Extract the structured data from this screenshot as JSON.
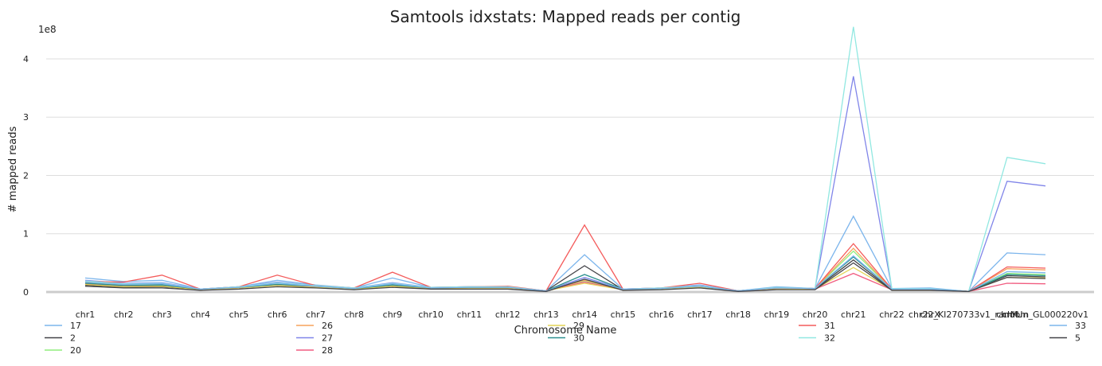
{
  "chart_data": {
    "type": "line",
    "title": "Samtools idxstats: Mapped reads per contig",
    "xlabel": "Chromosome Name",
    "ylabel": "# mapped reads",
    "y_multiplier_label": "1e8",
    "ylim": [
      0,
      4.6
    ],
    "yticks": [
      0,
      1,
      2,
      3,
      4
    ],
    "grid": true,
    "legend_position": "bottom",
    "categories": [
      "chr1",
      "chr2",
      "chr3",
      "chr4",
      "chr5",
      "chr6",
      "chr7",
      "chr8",
      "chr9",
      "chr10",
      "chr11",
      "chr12",
      "chr13",
      "chr14",
      "chr15",
      "chr16",
      "chr17",
      "chr18",
      "chr19",
      "chr20",
      "chr21",
      "chr22",
      "chrX",
      "chr22_KI270733v1_random",
      "chrM",
      "chrUn_GL000220v1"
    ],
    "series": [
      {
        "name": "17",
        "color": "#7cb5ec",
        "values": [
          0.24,
          0.18,
          0.2,
          0.05,
          0.09,
          0.2,
          0.12,
          0.07,
          0.24,
          0.08,
          0.09,
          0.09,
          0.02,
          0.64,
          0.05,
          0.07,
          0.12,
          0.02,
          0.09,
          0.06,
          1.3,
          0.06,
          0.07,
          0.01,
          0.67,
          0.64
        ]
      },
      {
        "name": "2",
        "color": "#434348",
        "values": [
          0.12,
          0.08,
          0.09,
          0.04,
          0.07,
          0.12,
          0.09,
          0.05,
          0.1,
          0.06,
          0.07,
          0.07,
          0.02,
          0.45,
          0.04,
          0.05,
          0.09,
          0.02,
          0.05,
          0.05,
          0.55,
          0.04,
          0.04,
          0.01,
          0.28,
          0.26
        ]
      },
      {
        "name": "20",
        "color": "#90ed7d",
        "values": [
          0.16,
          0.12,
          0.13,
          0.05,
          0.08,
          0.14,
          0.1,
          0.06,
          0.13,
          0.07,
          0.08,
          0.08,
          0.02,
          0.18,
          0.05,
          0.06,
          0.1,
          0.02,
          0.07,
          0.06,
          0.7,
          0.05,
          0.05,
          0.01,
          0.32,
          0.3
        ]
      },
      {
        "name": "26",
        "color": "#f7a35c",
        "values": [
          0.15,
          0.11,
          0.12,
          0.05,
          0.08,
          0.13,
          0.1,
          0.06,
          0.12,
          0.07,
          0.08,
          0.08,
          0.02,
          0.2,
          0.05,
          0.06,
          0.11,
          0.02,
          0.07,
          0.06,
          0.75,
          0.05,
          0.05,
          0.01,
          0.4,
          0.38
        ]
      },
      {
        "name": "27",
        "color": "#8085e9",
        "values": [
          0.2,
          0.15,
          0.16,
          0.05,
          0.09,
          0.17,
          0.11,
          0.07,
          0.16,
          0.08,
          0.09,
          0.09,
          0.02,
          0.25,
          0.05,
          0.07,
          0.12,
          0.02,
          0.08,
          0.06,
          3.7,
          0.06,
          0.06,
          0.01,
          1.9,
          1.82
        ]
      },
      {
        "name": "28",
        "color": "#f15c80",
        "values": [
          0.14,
          0.1,
          0.11,
          0.04,
          0.07,
          0.12,
          0.09,
          0.05,
          0.11,
          0.06,
          0.07,
          0.07,
          0.02,
          0.17,
          0.04,
          0.05,
          0.09,
          0.02,
          0.06,
          0.05,
          0.32,
          0.04,
          0.04,
          0.01,
          0.15,
          0.14
        ]
      },
      {
        "name": "29",
        "color": "#e4d354",
        "values": [
          0.13,
          0.09,
          0.1,
          0.04,
          0.07,
          0.11,
          0.08,
          0.05,
          0.1,
          0.06,
          0.07,
          0.07,
          0.02,
          0.15,
          0.04,
          0.05,
          0.08,
          0.02,
          0.06,
          0.05,
          0.42,
          0.04,
          0.04,
          0.01,
          0.25,
          0.24
        ]
      },
      {
        "name": "30",
        "color": "#2b908f",
        "values": [
          0.15,
          0.11,
          0.12,
          0.05,
          0.08,
          0.13,
          0.1,
          0.06,
          0.12,
          0.07,
          0.08,
          0.08,
          0.02,
          0.3,
          0.05,
          0.06,
          0.1,
          0.02,
          0.07,
          0.06,
          0.6,
          0.05,
          0.05,
          0.01,
          0.3,
          0.28
        ]
      },
      {
        "name": "31",
        "color": "#f45b5b",
        "values": [
          0.18,
          0.17,
          0.29,
          0.05,
          0.09,
          0.29,
          0.11,
          0.07,
          0.34,
          0.08,
          0.09,
          0.1,
          0.02,
          1.15,
          0.05,
          0.07,
          0.15,
          0.02,
          0.07,
          0.06,
          0.83,
          0.05,
          0.05,
          0.01,
          0.43,
          0.41
        ]
      },
      {
        "name": "32",
        "color": "#91e8e1",
        "values": [
          0.19,
          0.14,
          0.15,
          0.05,
          0.09,
          0.16,
          0.11,
          0.07,
          0.15,
          0.08,
          0.09,
          0.09,
          0.02,
          0.22,
          0.05,
          0.07,
          0.11,
          0.02,
          0.08,
          0.06,
          4.55,
          0.06,
          0.06,
          0.01,
          2.31,
          2.2
        ]
      },
      {
        "name": "33",
        "color": "#7cb5ec",
        "values": [
          0.17,
          0.13,
          0.14,
          0.05,
          0.08,
          0.15,
          0.1,
          0.06,
          0.14,
          0.07,
          0.08,
          0.08,
          0.02,
          0.22,
          0.05,
          0.06,
          0.1,
          0.02,
          0.07,
          0.06,
          0.62,
          0.05,
          0.05,
          0.01,
          0.35,
          0.33
        ]
      },
      {
        "name": "5",
        "color": "#434348",
        "values": [
          0.1,
          0.07,
          0.07,
          0.03,
          0.05,
          0.09,
          0.07,
          0.04,
          0.08,
          0.05,
          0.05,
          0.05,
          0.01,
          0.22,
          0.03,
          0.04,
          0.07,
          0.01,
          0.04,
          0.04,
          0.5,
          0.03,
          0.03,
          0.01,
          0.25,
          0.23
        ]
      }
    ]
  }
}
